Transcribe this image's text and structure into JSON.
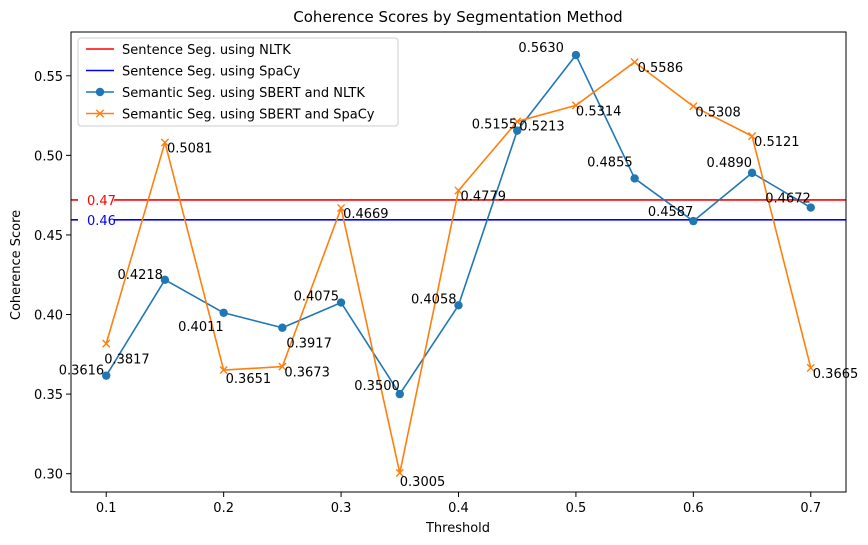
{
  "chart_data": {
    "type": "line",
    "title": "Coherence Scores by Segmentation Method",
    "xlabel": "Threshold",
    "ylabel": "Coherence Score",
    "xlim": [
      0.07,
      0.73
    ],
    "ylim": [
      0.2885,
      0.5775
    ],
    "x_ticks": [
      0.1,
      0.2,
      0.3,
      0.4,
      0.5,
      0.6,
      0.7
    ],
    "x_tick_labels": [
      "0.1",
      "0.2",
      "0.3",
      "0.4",
      "0.5",
      "0.6",
      "0.7"
    ],
    "y_ticks": [
      0.3,
      0.35,
      0.4,
      0.45,
      0.5,
      0.55
    ],
    "y_tick_labels": [
      "0.30",
      "0.35",
      "0.40",
      "0.45",
      "0.50",
      "0.55"
    ],
    "grid": false,
    "legend_position": "top-left",
    "hlines": [
      {
        "name": "Sentence Seg. using NLTK",
        "value": 0.472,
        "label": "0.47",
        "color": "#ff0000"
      },
      {
        "name": "Sentence Seg. using SpaCy",
        "value": 0.4595,
        "label": "0.46",
        "color": "#0000ff"
      }
    ],
    "series": [
      {
        "name": "Semantic Seg. using SBERT and NLTK",
        "color": "#1f77b4",
        "marker": "circle",
        "x": [
          0.1,
          0.15,
          0.2,
          0.25,
          0.3,
          0.35,
          0.4,
          0.45,
          0.5,
          0.55,
          0.6,
          0.65,
          0.7
        ],
        "values": [
          0.3616,
          0.4218,
          0.4011,
          0.3917,
          0.4075,
          0.35,
          0.4058,
          0.5155,
          0.563,
          0.4855,
          0.4587,
          0.489,
          0.4672
        ],
        "labels": [
          "0.3616",
          "0.4218",
          "0.4011",
          "0.3917",
          "0.4075",
          "0.3500",
          "0.4058",
          "0.5155",
          "0.5630",
          "0.4855",
          "0.4587",
          "0.4890",
          "0.4672"
        ]
      },
      {
        "name": "Semantic Seg. using SBERT and SpaCy",
        "color": "#ff7f0e",
        "marker": "x",
        "x": [
          0.1,
          0.15,
          0.2,
          0.25,
          0.3,
          0.35,
          0.4,
          0.45,
          0.5,
          0.55,
          0.6,
          0.65,
          0.7
        ],
        "values": [
          0.3817,
          0.5081,
          0.3651,
          0.3673,
          0.4669,
          0.3005,
          0.4779,
          0.5213,
          0.5314,
          0.5586,
          0.5308,
          0.5121,
          0.3665
        ],
        "labels": [
          "0.3817",
          "0.5081",
          "0.3651",
          "0.3673",
          "0.4669",
          "0.3005",
          "0.4779",
          "0.5213",
          "0.5314",
          "0.5586",
          "0.5308",
          "0.5121",
          "0.3665"
        ]
      }
    ]
  }
}
